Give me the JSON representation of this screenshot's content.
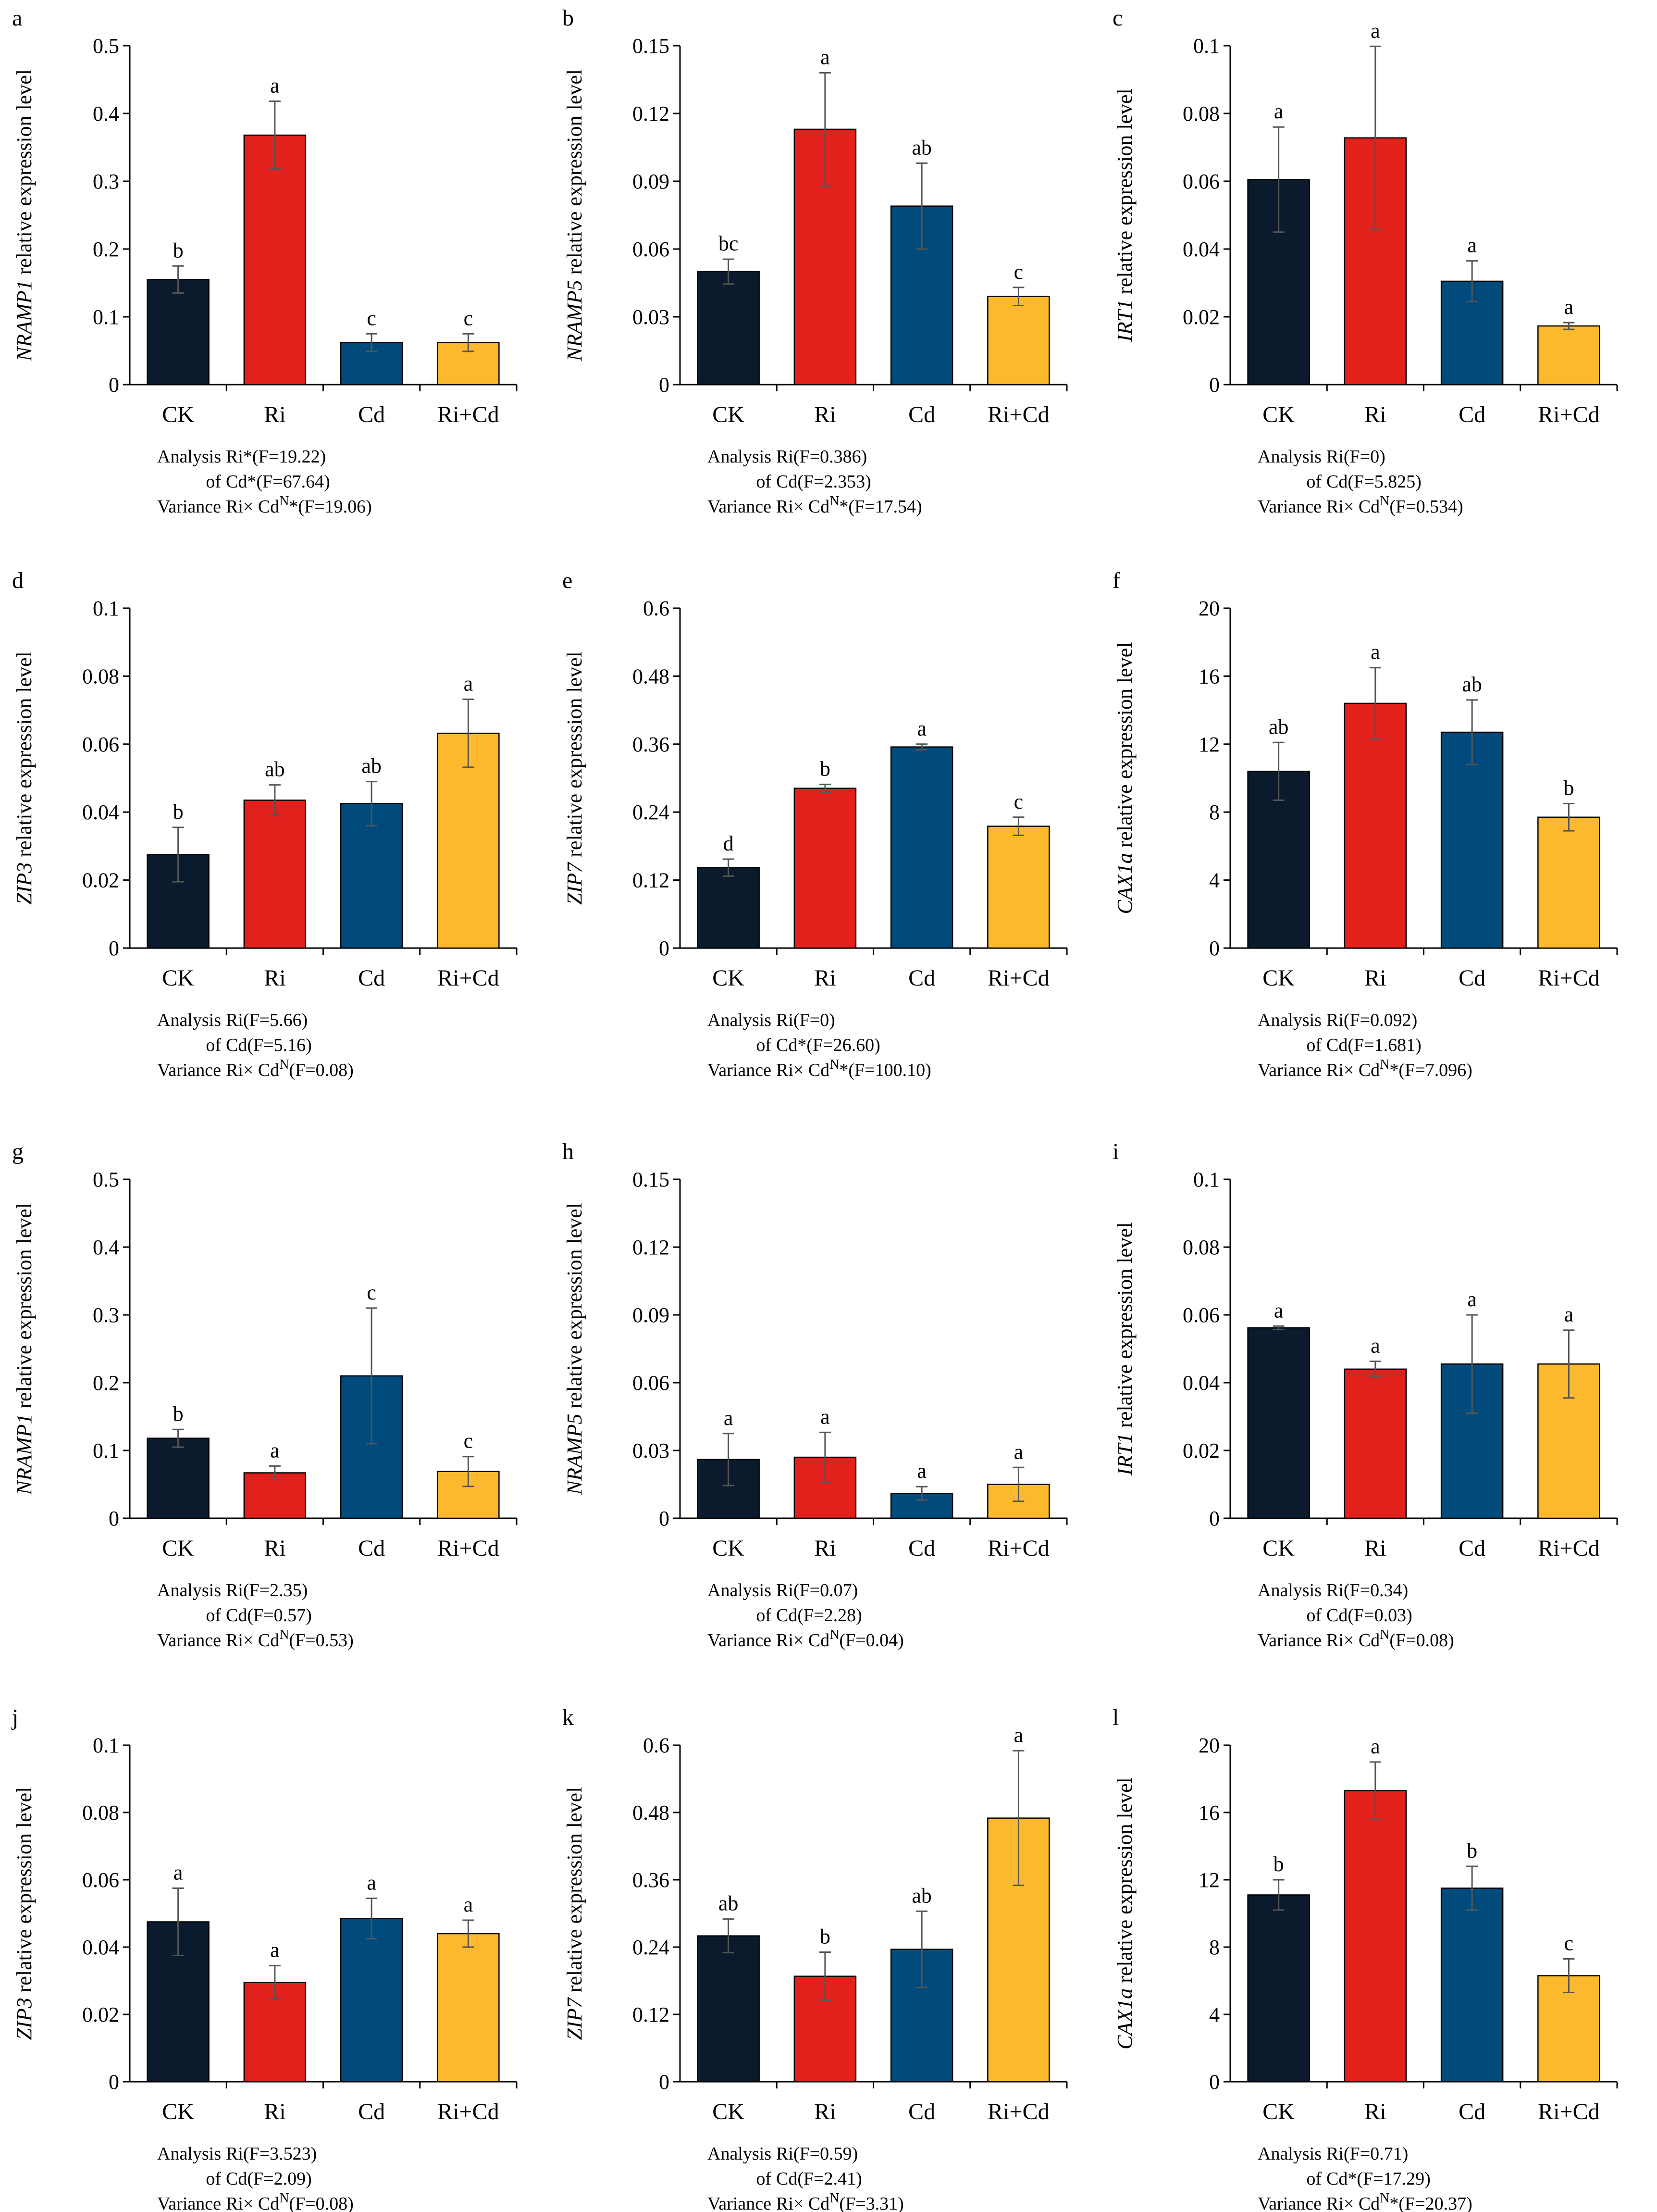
{
  "figure": {
    "categories": [
      "CK",
      "Ri",
      "Cd",
      "Ri+Cd"
    ],
    "colors": [
      "#0b1a2c",
      "#e3211c",
      "#004a7c",
      "#fdb92d"
    ],
    "axis_color": "#000000",
    "errorbar_color": "#555555",
    "ylabel_suffix": " relative expression level",
    "anova_row_labels": [
      "Analysis",
      "of",
      "Variance"
    ]
  },
  "chart_data": [
    {
      "panel": "a",
      "type": "bar",
      "gene": "NRAMP1",
      "ylim": [
        0,
        0.5
      ],
      "yticks": [
        "0",
        "0.1",
        "0.2",
        "0.3",
        "0.4",
        "0.5"
      ],
      "values": [
        0.155,
        0.368,
        0.062,
        0.062
      ],
      "errors": [
        0.02,
        0.05,
        0.013,
        0.013
      ],
      "letters": [
        "b",
        "a",
        "c",
        "c"
      ],
      "anova": [
        [
          {
            "t": "Ri*(F=19.22)"
          }
        ],
        [
          {
            "t": "Cd*(F=67.64)"
          }
        ],
        [
          {
            "t": "Ri× Cd"
          },
          {
            "t": "N",
            "sup": true
          },
          {
            "t": "*(F=19.06)"
          }
        ]
      ]
    },
    {
      "panel": "b",
      "type": "bar",
      "gene": "NRAMP5",
      "ylim": [
        0,
        0.15
      ],
      "yticks": [
        "0",
        "0.03",
        "0.06",
        "0.09",
        "0.12",
        "0.15"
      ],
      "values": [
        0.05,
        0.113,
        0.079,
        0.039
      ],
      "errors": [
        0.0055,
        0.025,
        0.019,
        0.004
      ],
      "letters": [
        "bc",
        "a",
        "ab",
        "c"
      ],
      "anova": [
        [
          {
            "t": "Ri(F=0.386)"
          }
        ],
        [
          {
            "t": "Cd(F=2.353)"
          }
        ],
        [
          {
            "t": "Ri× Cd"
          },
          {
            "t": "N",
            "sup": true
          },
          {
            "t": "*(F=17.54)"
          }
        ]
      ]
    },
    {
      "panel": "c",
      "type": "bar",
      "gene": "IRT1",
      "ylim": [
        0,
        0.1
      ],
      "yticks": [
        "0",
        "0.02",
        "0.04",
        "0.06",
        "0.08",
        "0.1"
      ],
      "values": [
        0.0605,
        0.0728,
        0.0305,
        0.0173
      ],
      "errors": [
        0.0155,
        0.027,
        0.006,
        0.001
      ],
      "letters": [
        "a",
        "a",
        "a",
        "a"
      ],
      "anova": [
        [
          {
            "t": "Ri(F=0)"
          }
        ],
        [
          {
            "t": "Cd(F=5.825)"
          }
        ],
        [
          {
            "t": "Ri× Cd"
          },
          {
            "t": "N",
            "sup": true
          },
          {
            "t": "(F=0.534)"
          }
        ]
      ]
    },
    {
      "panel": "d",
      "type": "bar",
      "gene": "ZIP3",
      "ylim": [
        0,
        0.1
      ],
      "yticks": [
        "0",
        "0.02",
        "0.04",
        "0.06",
        "0.08",
        "0.1"
      ],
      "values": [
        0.0275,
        0.0435,
        0.0425,
        0.0632
      ],
      "errors": [
        0.008,
        0.0045,
        0.0065,
        0.01
      ],
      "letters": [
        "b",
        "ab",
        "ab",
        "a"
      ],
      "anova": [
        [
          {
            "t": "Ri(F=5.66)"
          }
        ],
        [
          {
            "t": "Cd(F=5.16)"
          }
        ],
        [
          {
            "t": "Ri× Cd"
          },
          {
            "t": "N",
            "sup": true
          },
          {
            "t": "(F=0.08)"
          }
        ]
      ]
    },
    {
      "panel": "e",
      "type": "bar",
      "gene": "ZIP7",
      "ylim": [
        0,
        0.6
      ],
      "yticks": [
        "0",
        "0.12",
        "0.24",
        "0.36",
        "0.48",
        "0.6"
      ],
      "values": [
        0.142,
        0.282,
        0.355,
        0.215
      ],
      "errors": [
        0.015,
        0.007,
        0.005,
        0.016
      ],
      "letters": [
        "d",
        "b",
        "a",
        "c"
      ],
      "anova": [
        [
          {
            "t": "Ri(F=0)"
          }
        ],
        [
          {
            "t": "Cd*(F=26.60)"
          }
        ],
        [
          {
            "t": "Ri× Cd"
          },
          {
            "t": "N",
            "sup": true
          },
          {
            "t": "*(F=100.10)"
          }
        ]
      ]
    },
    {
      "panel": "f",
      "type": "bar",
      "gene": "CAX1a",
      "ylim": [
        0,
        20
      ],
      "yticks": [
        "0",
        "4",
        "8",
        "12",
        "16",
        "20"
      ],
      "values": [
        10.4,
        14.4,
        12.7,
        7.7
      ],
      "errors": [
        1.7,
        2.1,
        1.9,
        0.8
      ],
      "letters": [
        "ab",
        "a",
        "ab",
        "b"
      ],
      "anova": [
        [
          {
            "t": "Ri(F=0.092)"
          }
        ],
        [
          {
            "t": "Cd(F=1.681)"
          }
        ],
        [
          {
            "t": "Ri× Cd"
          },
          {
            "t": "N",
            "sup": true
          },
          {
            "t": "*(F=7.096)"
          }
        ]
      ]
    },
    {
      "panel": "g",
      "type": "bar",
      "gene": "NRAMP1",
      "ylim": [
        0,
        0.5
      ],
      "yticks": [
        "0",
        "0.1",
        "0.2",
        "0.3",
        "0.4",
        "0.5"
      ],
      "values": [
        0.118,
        0.067,
        0.21,
        0.069
      ],
      "errors": [
        0.013,
        0.01,
        0.1,
        0.022
      ],
      "letters": [
        "b",
        "a",
        "c",
        "c"
      ],
      "anova": [
        [
          {
            "t": "Ri(F=2.35)"
          }
        ],
        [
          {
            "t": "Cd(F=0.57)"
          }
        ],
        [
          {
            "t": "Ri× Cd"
          },
          {
            "t": "N",
            "sup": true
          },
          {
            "t": "(F=0.53)"
          }
        ]
      ]
    },
    {
      "panel": "h",
      "type": "bar",
      "gene": "NRAMP5",
      "ylim": [
        0,
        0.15
      ],
      "yticks": [
        "0",
        "0.03",
        "0.06",
        "0.09",
        "0.12",
        "0.15"
      ],
      "values": [
        0.026,
        0.027,
        0.011,
        0.015
      ],
      "errors": [
        0.0115,
        0.011,
        0.003,
        0.0075
      ],
      "letters": [
        "a",
        "a",
        "a",
        "a"
      ],
      "anova": [
        [
          {
            "t": "Ri(F=0.07)"
          }
        ],
        [
          {
            "t": "Cd(F=2.28)"
          }
        ],
        [
          {
            "t": "Ri× Cd"
          },
          {
            "t": "N",
            "sup": true
          },
          {
            "t": "(F=0.04)"
          }
        ]
      ]
    },
    {
      "panel": "i",
      "type": "bar",
      "gene": "IRT1",
      "ylim": [
        0,
        0.1
      ],
      "yticks": [
        "0",
        "0.02",
        "0.04",
        "0.06",
        "0.08",
        "0.1"
      ],
      "values": [
        0.0562,
        0.044,
        0.0455,
        0.0455
      ],
      "errors": [
        0.0005,
        0.0023,
        0.0145,
        0.01
      ],
      "letters": [
        "a",
        "a",
        "a",
        "a"
      ],
      "anova": [
        [
          {
            "t": "Ri(F=0.34)"
          }
        ],
        [
          {
            "t": "Cd(F=0.03)"
          }
        ],
        [
          {
            "t": "Ri× Cd"
          },
          {
            "t": "N",
            "sup": true
          },
          {
            "t": "(F=0.08)"
          }
        ]
      ]
    },
    {
      "panel": "j",
      "type": "bar",
      "gene": "ZIP3",
      "ylim": [
        0,
        0.1
      ],
      "yticks": [
        "0",
        "0.02",
        "0.04",
        "0.06",
        "0.08",
        "0.1"
      ],
      "values": [
        0.0475,
        0.0295,
        0.0485,
        0.044
      ],
      "errors": [
        0.01,
        0.005,
        0.006,
        0.004
      ],
      "letters": [
        "a",
        "a",
        "a",
        "a"
      ],
      "anova": [
        [
          {
            "t": "Ri(F=3.523)"
          }
        ],
        [
          {
            "t": "Cd(F=2.09)"
          }
        ],
        [
          {
            "t": "Ri× Cd"
          },
          {
            "t": "N",
            "sup": true
          },
          {
            "t": "(F=0.08)"
          }
        ]
      ]
    },
    {
      "panel": "k",
      "type": "bar",
      "gene": "ZIP7",
      "ylim": [
        0,
        0.6
      ],
      "yticks": [
        "0",
        "0.12",
        "0.24",
        "0.36",
        "0.48",
        "0.6"
      ],
      "values": [
        0.26,
        0.188,
        0.236,
        0.47
      ],
      "errors": [
        0.03,
        0.043,
        0.068,
        0.12
      ],
      "letters": [
        "ab",
        "b",
        "ab",
        "a"
      ],
      "anova": [
        [
          {
            "t": "Ri(F=0.59)"
          }
        ],
        [
          {
            "t": "Cd(F=2.41)"
          }
        ],
        [
          {
            "t": "Ri× Cd"
          },
          {
            "t": "N",
            "sup": true
          },
          {
            "t": "(F=3.31)"
          }
        ]
      ]
    },
    {
      "panel": "l",
      "type": "bar",
      "gene": "CAX1a",
      "ylim": [
        0,
        20
      ],
      "yticks": [
        "0",
        "4",
        "8",
        "12",
        "16",
        "20"
      ],
      "values": [
        11.1,
        17.3,
        11.5,
        6.3
      ],
      "errors": [
        0.9,
        1.7,
        1.3,
        1.0
      ],
      "letters": [
        "b",
        "a",
        "b",
        "c"
      ],
      "anova": [
        [
          {
            "t": "Ri(F=0.71)"
          }
        ],
        [
          {
            "t": "Cd*(F=17.29)"
          }
        ],
        [
          {
            "t": "Ri× Cd"
          },
          {
            "t": "N",
            "sup": true
          },
          {
            "t": "*(F=20.37)"
          }
        ]
      ]
    }
  ]
}
